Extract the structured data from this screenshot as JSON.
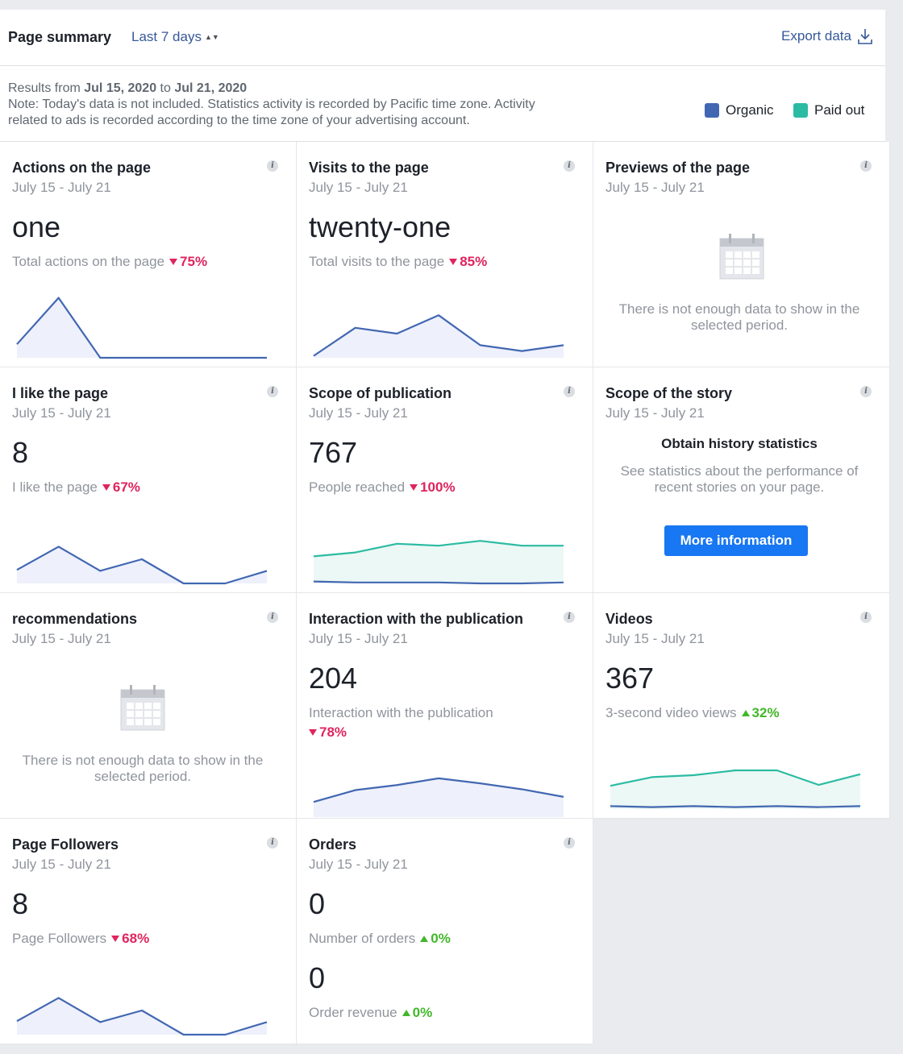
{
  "header": {
    "title": "Page summary",
    "range": "Last 7 days",
    "export": "Export data"
  },
  "notice": {
    "prefix": "Results from",
    "from": "Jul 15, 2020",
    "to_word": "to",
    "to": "Jul 21, 2020",
    "note_line1": "Note: Today's data is not included. Statistics activity is recorded by Pacific time zone. Activity",
    "note_line2": "related to ads is recorded according to the time zone of your advertising account."
  },
  "legend": {
    "organic": "Organic",
    "organic_color": "#4267b2",
    "paid": "Paid out",
    "paid_color": "#2bbba2"
  },
  "cards": {
    "actions": {
      "title": "Actions on the page",
      "date": "July 15 - July 21",
      "value": "one",
      "label": "Total actions on the page",
      "change": "75%",
      "organic": [
        14,
        62,
        0,
        0,
        0,
        0,
        0
      ]
    },
    "visits": {
      "title": "Visits to the page",
      "date": "July 15 - July 21",
      "value": "twenty-one",
      "label": "Total visits to the page",
      "change": "85%",
      "organic": [
        2,
        31,
        25,
        44,
        13,
        7,
        13
      ]
    },
    "previews": {
      "title": "Previews of the page",
      "date": "July 15 - July 21",
      "nodata": "There is not enough data to show in the selected period."
    },
    "likes": {
      "title": "I like the page",
      "date": "July 15 - July 21",
      "value": "8",
      "label": "I like the page",
      "change": "67%",
      "organic": [
        14,
        38,
        13,
        25,
        0,
        0,
        13
      ]
    },
    "scope_pub": {
      "title": "Scope of publication",
      "date": "July 15 - July 21",
      "value": "767",
      "label": "People reached",
      "change": "100%",
      "organic": [
        2,
        1,
        1,
        1,
        0,
        0,
        1
      ],
      "paid": [
        28,
        32,
        41,
        39,
        44,
        39,
        39
      ]
    },
    "scope_story": {
      "title": "Scope of the story",
      "date": "July 15 - July 21",
      "heading": "Obtain history statistics",
      "text": "See statistics about the performance of recent stories on your page.",
      "button": "More information"
    },
    "recommendations": {
      "title": "recommendations",
      "date": "July 15 - July 21",
      "nodata": "There is not enough data to show in the selected period."
    },
    "interaction": {
      "title": "Interaction with the publication",
      "date": "July 15 - July 21",
      "value": "204",
      "label": "Interaction with the publication",
      "change": "78%",
      "organic": [
        18,
        32,
        38,
        46,
        40,
        33,
        24
      ]
    },
    "videos": {
      "title": "Videos",
      "date": "July 15 - July 21",
      "value": "367",
      "label": "3-second video views",
      "change": "32%",
      "organic": [
        3,
        2,
        3,
        2,
        3,
        2,
        3
      ],
      "paid": [
        24,
        33,
        35,
        40,
        40,
        25,
        36
      ]
    },
    "followers": {
      "title": "Page Followers",
      "date": "July 15 - July 21",
      "value": "8",
      "label": "Page Followers",
      "change": "68%",
      "organic": [
        14,
        38,
        13,
        25,
        0,
        0,
        13
      ]
    },
    "orders": {
      "title": "Orders",
      "date": "July 15 - July 21",
      "value": "0",
      "label": "Number of orders",
      "change": "0%",
      "value2": "0",
      "label2": "Order revenue",
      "change2": "0%"
    }
  }
}
